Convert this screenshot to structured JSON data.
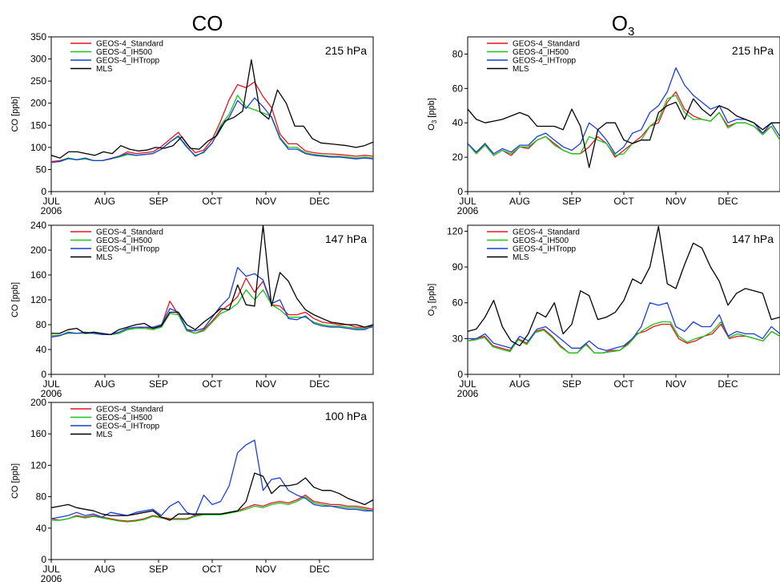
{
  "titles": {
    "co": "CO",
    "o3_main": "O",
    "o3_sub": "3"
  },
  "colors": {
    "GEOS-4_Standard": "#e8141c",
    "GEOS-4_IH500": "#19c41b",
    "GEOS-4_IHTropp": "#1c3fd8",
    "MLS": "#000000"
  },
  "chart_data": [
    {
      "type": "line",
      "id": "co215",
      "species": "CO",
      "pressure_label": "215 hPa",
      "ylabel": "CO [ppb]",
      "ylim": [
        0,
        350
      ],
      "yticks": [
        0,
        50,
        100,
        150,
        200,
        250,
        300,
        350
      ],
      "xlim": [
        0,
        30
      ],
      "xticks": [
        {
          "x": 0,
          "label": "JUL",
          "year": "2006"
        },
        {
          "x": 5,
          "label": "AUG"
        },
        {
          "x": 10,
          "label": "SEP"
        },
        {
          "x": 15,
          "label": "OCT"
        },
        {
          "x": 20,
          "label": "NOV"
        },
        {
          "x": 25,
          "label": "DEC"
        }
      ],
      "grid": false,
      "legend_position": "top-left",
      "series": [
        {
          "name": "GEOS-4_Standard",
          "values": [
            68,
            70,
            75,
            72,
            74,
            70,
            70,
            75,
            80,
            90,
            86,
            88,
            90,
            102,
            118,
            134,
            108,
            88,
            94,
            118,
            160,
            208,
            242,
            235,
            248,
            215,
            190,
            130,
            108,
            108,
            92,
            88,
            86,
            85,
            84,
            82,
            80,
            82,
            80
          ]
        },
        {
          "name": "GEOS-4_IH500",
          "values": [
            66,
            68,
            74,
            72,
            74,
            70,
            70,
            74,
            78,
            84,
            82,
            84,
            86,
            96,
            112,
            124,
            100,
            82,
            88,
            110,
            150,
            175,
            218,
            192,
            185,
            178,
            170,
            122,
            100,
            100,
            88,
            84,
            82,
            80,
            80,
            78,
            76,
            78,
            76
          ]
        },
        {
          "name": "GEOS-4_IHTropp",
          "values": [
            66,
            68,
            76,
            72,
            76,
            70,
            70,
            74,
            80,
            86,
            82,
            84,
            86,
            96,
            112,
            126,
            102,
            80,
            90,
            110,
            146,
            168,
            206,
            188,
            212,
            192,
            168,
            120,
            96,
            96,
            86,
            82,
            80,
            78,
            78,
            76,
            74,
            76,
            74
          ]
        },
        {
          "name": "MLS",
          "values": [
            82,
            76,
            90,
            90,
            86,
            82,
            90,
            86,
            104,
            96,
            92,
            94,
            100,
            98,
            104,
            124,
            98,
            96,
            114,
            126,
            160,
            168,
            182,
            298,
            180,
            164,
            230,
            200,
            148,
            148,
            120,
            110,
            108,
            106,
            104,
            100,
            104,
            112
          ]
        }
      ]
    },
    {
      "type": "line",
      "id": "co147",
      "species": "CO",
      "pressure_label": "147 hPa",
      "ylabel": "CO [ppb]",
      "ylim": [
        0,
        240
      ],
      "yticks": [
        0,
        40,
        80,
        120,
        160,
        200,
        240
      ],
      "xlim": [
        0,
        30
      ],
      "xticks": [
        {
          "x": 0,
          "label": "JUL",
          "year": "2006"
        },
        {
          "x": 5,
          "label": "AUG"
        },
        {
          "x": 10,
          "label": "SEP"
        },
        {
          "x": 15,
          "label": "OCT"
        },
        {
          "x": 20,
          "label": "NOV"
        },
        {
          "x": 25,
          "label": "DEC"
        }
      ],
      "grid": false,
      "legend_position": "top-left",
      "series": [
        {
          "name": "GEOS-4_Standard",
          "values": [
            62,
            63,
            67,
            66,
            67,
            66,
            65,
            64,
            66,
            72,
            74,
            76,
            74,
            78,
            118,
            96,
            72,
            66,
            72,
            86,
            102,
            112,
            125,
            155,
            132,
            150,
            112,
            110,
            96,
            96,
            100,
            90,
            84,
            82,
            80,
            80,
            76,
            76,
            78
          ]
        },
        {
          "name": "GEOS-4_IH500",
          "values": [
            62,
            63,
            66,
            66,
            66,
            66,
            65,
            64,
            66,
            72,
            74,
            74,
            72,
            76,
            98,
            96,
            70,
            66,
            70,
            84,
            98,
            104,
            114,
            136,
            120,
            136,
            112,
            104,
            92,
            92,
            92,
            84,
            80,
            78,
            78,
            76,
            74,
            74,
            76
          ]
        },
        {
          "name": "GEOS-4_IHTropp",
          "values": [
            60,
            62,
            68,
            66,
            68,
            66,
            64,
            64,
            68,
            74,
            76,
            76,
            76,
            80,
            106,
            100,
            72,
            70,
            74,
            92,
            110,
            124,
            172,
            158,
            162,
            152,
            114,
            120,
            90,
            88,
            94,
            82,
            78,
            76,
            76,
            74,
            72,
            72,
            78
          ]
        },
        {
          "name": "MLS",
          "values": [
            66,
            66,
            72,
            74,
            66,
            68,
            66,
            64,
            72,
            76,
            80,
            82,
            74,
            78,
            100,
            100,
            80,
            72,
            84,
            94,
            106,
            104,
            144,
            112,
            110,
            240,
            110,
            164,
            150,
            122,
            104,
            96,
            90,
            84,
            82,
            80,
            80,
            76,
            80
          ]
        }
      ]
    },
    {
      "type": "line",
      "id": "co100",
      "species": "CO",
      "pressure_label": "100 hPa",
      "ylabel": "CO [ppb]",
      "ylim": [
        0,
        200
      ],
      "yticks": [
        0,
        40,
        80,
        120,
        160,
        200
      ],
      "xlim": [
        0,
        30
      ],
      "xticks": [
        {
          "x": 0,
          "label": "JUL",
          "year": "2006"
        },
        {
          "x": 5,
          "label": "AUG"
        },
        {
          "x": 10,
          "label": "SEP"
        },
        {
          "x": 15,
          "label": "OCT"
        },
        {
          "x": 20,
          "label": "NOV"
        },
        {
          "x": 25,
          "label": "DEC"
        }
      ],
      "grid": false,
      "legend_position": "top-left",
      "series": [
        {
          "name": "GEOS-4_Standard",
          "values": [
            52,
            50,
            52,
            56,
            54,
            56,
            54,
            52,
            50,
            49,
            50,
            52,
            56,
            54,
            52,
            52,
            52,
            56,
            58,
            58,
            58,
            60,
            62,
            66,
            70,
            68,
            72,
            74,
            72,
            76,
            82,
            74,
            72,
            70,
            70,
            68,
            68,
            66,
            64
          ]
        },
        {
          "name": "GEOS-4_IH500",
          "values": [
            50,
            50,
            52,
            55,
            53,
            55,
            53,
            51,
            49,
            48,
            49,
            51,
            55,
            53,
            51,
            51,
            51,
            55,
            57,
            57,
            57,
            59,
            61,
            64,
            68,
            66,
            70,
            72,
            70,
            74,
            80,
            72,
            70,
            68,
            68,
            66,
            66,
            64,
            62
          ]
        },
        {
          "name": "GEOS-4_IHTropp",
          "values": [
            52,
            54,
            56,
            60,
            56,
            58,
            54,
            60,
            58,
            56,
            60,
            62,
            64,
            56,
            68,
            74,
            60,
            56,
            82,
            70,
            74,
            94,
            136,
            146,
            152,
            88,
            102,
            104,
            88,
            82,
            78,
            70,
            68,
            68,
            66,
            64,
            64,
            62,
            62
          ]
        },
        {
          "name": "MLS",
          "values": [
            66,
            68,
            70,
            66,
            64,
            62,
            58,
            56,
            56,
            56,
            58,
            60,
            62,
            54,
            50,
            58,
            58,
            58,
            58,
            58,
            58,
            60,
            62,
            74,
            110,
            106,
            84,
            94,
            94,
            96,
            104,
            92,
            88,
            88,
            84,
            78,
            74,
            70,
            76
          ]
        }
      ]
    },
    {
      "type": "line",
      "id": "o3215",
      "species": "O3",
      "pressure_label": "215 hPa",
      "ylabel": "O3 [ppb]",
      "ylim": [
        0,
        90
      ],
      "yticks": [
        0,
        20,
        40,
        60,
        80
      ],
      "xlim": [
        0,
        30
      ],
      "xticks": [
        {
          "x": 0,
          "label": "JUL",
          "year": "2006"
        },
        {
          "x": 5,
          "label": "AUG"
        },
        {
          "x": 10,
          "label": "SEP"
        },
        {
          "x": 15,
          "label": "OCT"
        },
        {
          "x": 20,
          "label": "NOV"
        },
        {
          "x": 25,
          "label": "DEC"
        }
      ],
      "grid": false,
      "legend_position": "top-left",
      "series": [
        {
          "name": "GEOS-4_Standard",
          "values": [
            28,
            22,
            28,
            21,
            24,
            21,
            26,
            25,
            30,
            32,
            28,
            24,
            22,
            22,
            26,
            32,
            28,
            20,
            24,
            28,
            32,
            38,
            40,
            52,
            58,
            48,
            44,
            42,
            41,
            46,
            38,
            40,
            40,
            38,
            34,
            38,
            30
          ]
        },
        {
          "name": "GEOS-4_IH500",
          "values": [
            28,
            22,
            27,
            21,
            24,
            22,
            26,
            26,
            30,
            32,
            27,
            24,
            22,
            22,
            32,
            30,
            28,
            21,
            22,
            28,
            30,
            38,
            42,
            54,
            56,
            46,
            42,
            42,
            41,
            46,
            37,
            40,
            40,
            38,
            33,
            38,
            30
          ]
        },
        {
          "name": "GEOS-4_IHTropp",
          "values": [
            28,
            23,
            28,
            22,
            25,
            23,
            27,
            27,
            32,
            34,
            30,
            26,
            24,
            28,
            40,
            36,
            30,
            22,
            26,
            34,
            36,
            46,
            50,
            58,
            72,
            62,
            56,
            52,
            48,
            50,
            40,
            42,
            42,
            40,
            34,
            40,
            32
          ]
        },
        {
          "name": "MLS",
          "values": [
            48,
            42,
            40,
            41,
            42,
            44,
            46,
            44,
            38,
            38,
            38,
            36,
            48,
            38,
            14,
            36,
            40,
            40,
            30,
            28,
            30,
            30,
            46,
            50,
            52,
            42,
            54,
            48,
            44,
            50,
            48,
            44,
            42,
            40,
            36,
            40,
            40
          ]
        }
      ]
    },
    {
      "type": "line",
      "id": "o3147",
      "species": "O3",
      "pressure_label": "147 hPa",
      "ylabel": "O3 [ppb]",
      "ylim": [
        0,
        125
      ],
      "yticks": [
        0,
        30,
        60,
        90,
        120
      ],
      "xlim": [
        0,
        30
      ],
      "xticks": [
        {
          "x": 0,
          "label": "JUL",
          "year": "2006"
        },
        {
          "x": 5,
          "label": "AUG"
        },
        {
          "x": 10,
          "label": "SEP"
        },
        {
          "x": 15,
          "label": "OCT"
        },
        {
          "x": 20,
          "label": "NOV"
        },
        {
          "x": 25,
          "label": "DEC"
        }
      ],
      "grid": false,
      "legend_position": "top-left",
      "series": [
        {
          "name": "GEOS-4_Standard",
          "values": [
            28,
            30,
            32,
            24,
            22,
            20,
            30,
            26,
            36,
            38,
            32,
            24,
            18,
            18,
            26,
            18,
            18,
            20,
            20,
            26,
            34,
            36,
            40,
            42,
            42,
            30,
            26,
            28,
            32,
            34,
            42,
            30,
            32,
            32,
            30,
            28,
            36,
            32
          ]
        },
        {
          "name": "GEOS-4_IH500",
          "values": [
            28,
            29,
            31,
            23,
            21,
            19,
            29,
            25,
            35,
            37,
            31,
            23,
            18,
            18,
            25,
            18,
            18,
            19,
            20,
            25,
            33,
            38,
            42,
            44,
            44,
            32,
            27,
            30,
            32,
            36,
            44,
            31,
            34,
            32,
            30,
            28,
            36,
            32
          ]
        },
        {
          "name": "GEOS-4_IHTropp",
          "values": [
            30,
            30,
            34,
            26,
            24,
            22,
            32,
            28,
            38,
            40,
            34,
            28,
            22,
            22,
            28,
            22,
            20,
            22,
            24,
            30,
            40,
            60,
            58,
            60,
            40,
            36,
            44,
            40,
            40,
            50,
            32,
            36,
            34,
            34,
            30,
            40,
            34
          ]
        },
        {
          "name": "MLS",
          "values": [
            36,
            38,
            48,
            62,
            40,
            28,
            24,
            34,
            52,
            48,
            60,
            34,
            42,
            70,
            66,
            46,
            48,
            52,
            62,
            80,
            76,
            90,
            124,
            76,
            72,
            92,
            110,
            106,
            90,
            78,
            58,
            68,
            72,
            70,
            68,
            46,
            48
          ]
        }
      ]
    }
  ]
}
